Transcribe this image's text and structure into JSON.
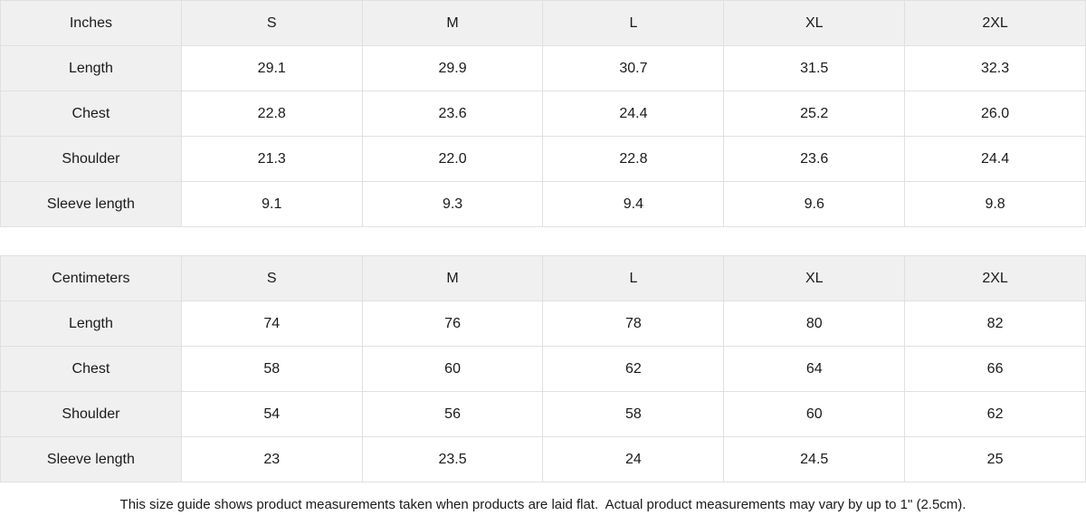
{
  "colors": {
    "header_bg": "#f0f0f0",
    "label_column_bg": "#f0f0f0",
    "border": "#e0e0e0",
    "text": "#1a1a1a",
    "background": "#ffffff"
  },
  "tables": [
    {
      "unit_label": "Inches",
      "size_headers": [
        "S",
        "M",
        "L",
        "XL",
        "2XL"
      ],
      "rows": [
        {
          "label": "Length",
          "values": [
            "29.1",
            "29.9",
            "30.7",
            "31.5",
            "32.3"
          ]
        },
        {
          "label": "Chest",
          "values": [
            "22.8",
            "23.6",
            "24.4",
            "25.2",
            "26.0"
          ]
        },
        {
          "label": "Shoulder",
          "values": [
            "21.3",
            "22.0",
            "22.8",
            "23.6",
            "24.4"
          ]
        },
        {
          "label": "Sleeve length",
          "values": [
            "9.1",
            "9.3",
            "9.4",
            "9.6",
            "9.8"
          ]
        }
      ]
    },
    {
      "unit_label": "Centimeters",
      "size_headers": [
        "S",
        "M",
        "L",
        "XL",
        "2XL"
      ],
      "rows": [
        {
          "label": "Length",
          "values": [
            "74",
            "76",
            "78",
            "80",
            "82"
          ]
        },
        {
          "label": "Chest",
          "values": [
            "58",
            "60",
            "62",
            "64",
            "66"
          ]
        },
        {
          "label": "Shoulder",
          "values": [
            "54",
            "56",
            "58",
            "60",
            "62"
          ]
        },
        {
          "label": "Sleeve length",
          "values": [
            "23",
            "23.5",
            "24",
            "24.5",
            "25"
          ]
        }
      ]
    }
  ],
  "footer": {
    "note": "This size guide shows product measurements taken when products are laid flat.  Actual product measurements may vary by up to 1\" (2.5cm)."
  }
}
